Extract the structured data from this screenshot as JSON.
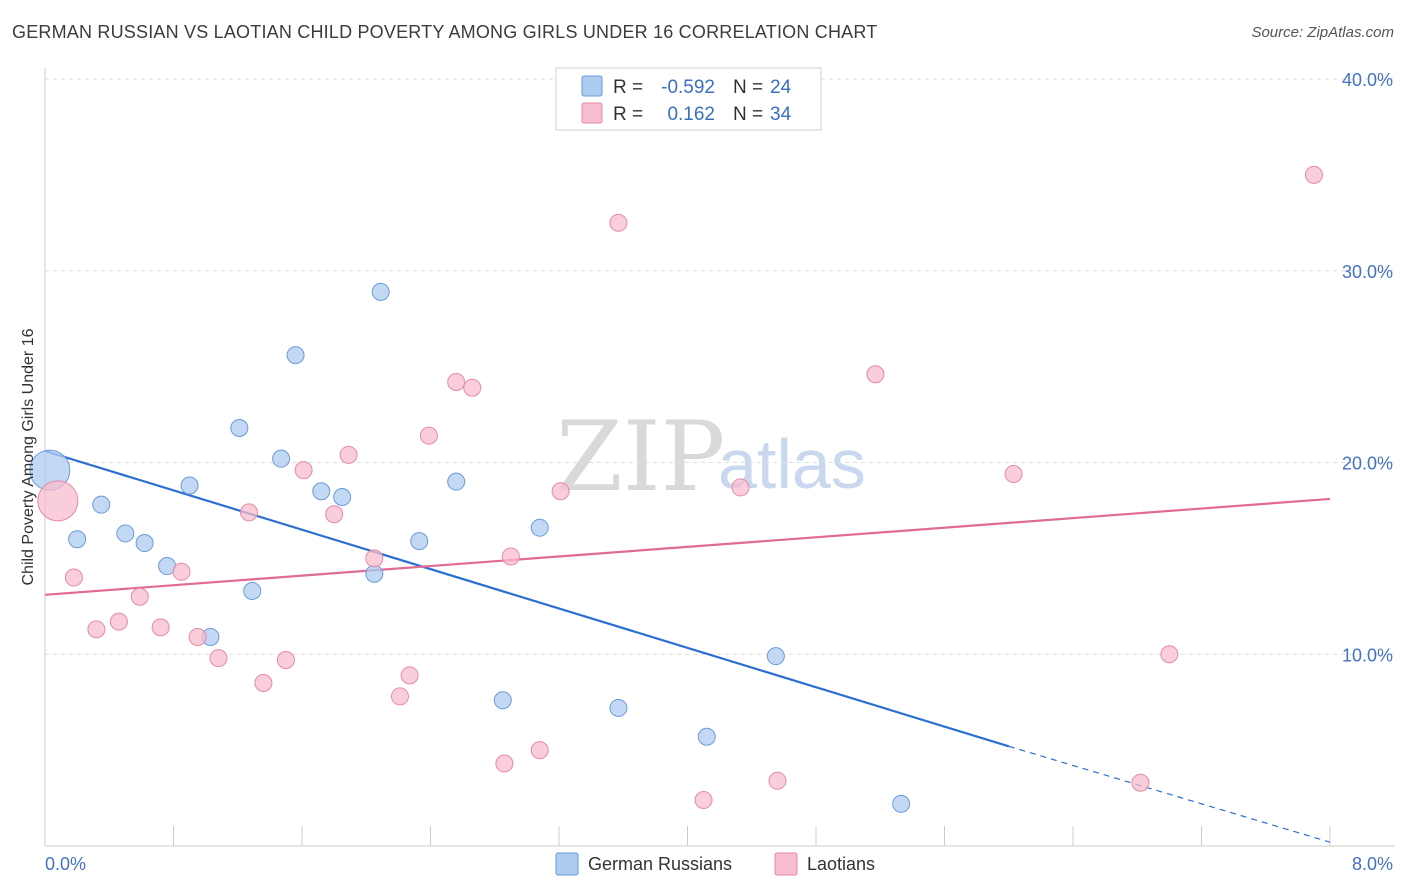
{
  "title": "GERMAN RUSSIAN VS LAOTIAN CHILD POVERTY AMONG GIRLS UNDER 16 CORRELATION CHART",
  "source": "Source: ZipAtlas.com",
  "watermark": {
    "zip": "ZIP",
    "atlas": "atlas"
  },
  "legend": {
    "rows": [
      {
        "r_label": "R =",
        "r_value": "-0.592",
        "n_label": "N =",
        "n_value": "24",
        "color": "#aecbf0"
      },
      {
        "r_label": "R =",
        "r_value": "0.162",
        "n_label": "N =",
        "n_value": "34",
        "color": "#f7bccd"
      }
    ]
  },
  "bottom_legend": [
    {
      "label": "German Russians",
      "color": "#aecbf0"
    },
    {
      "label": "Laotians",
      "color": "#f7bccd"
    }
  ],
  "chart_data": {
    "type": "scatter",
    "title": "GERMAN RUSSIAN VS LAOTIAN CHILD POVERTY AMONG GIRLS UNDER 16 CORRELATION CHART",
    "xlabel": "",
    "ylabel": "Child Poverty Among Girls Under 16",
    "xlim": [
      0,
      8
    ],
    "ylim": [
      0,
      40
    ],
    "x_tick_labels": [
      "0.0%",
      "8.0%"
    ],
    "y_ticks": [
      10,
      20,
      30,
      40
    ],
    "y_tick_labels": [
      "10.0%",
      "20.0%",
      "30.0%",
      "40.0%"
    ],
    "grid": true,
    "legend_position": "top-center",
    "series": [
      {
        "name": "German Russians",
        "color": "#aecbf0",
        "stroke": "#6b9bd8",
        "trend_color": "#2b6fd1",
        "trend": {
          "x0": 0,
          "y0": 20.6,
          "x1": 6.0,
          "y1": 5.2,
          "dash_to_x": 8.0,
          "dash_to_y": 0.2
        },
        "points": [
          {
            "x": 0.03,
            "y": 19.6,
            "size": "large"
          },
          {
            "x": 0.2,
            "y": 16.0
          },
          {
            "x": 0.35,
            "y": 17.8
          },
          {
            "x": 0.5,
            "y": 16.3
          },
          {
            "x": 0.62,
            "y": 15.8
          },
          {
            "x": 0.76,
            "y": 14.6
          },
          {
            "x": 0.9,
            "y": 18.8
          },
          {
            "x": 1.03,
            "y": 10.9
          },
          {
            "x": 1.21,
            "y": 21.8
          },
          {
            "x": 1.29,
            "y": 13.3
          },
          {
            "x": 1.47,
            "y": 20.2
          },
          {
            "x": 1.56,
            "y": 25.6
          },
          {
            "x": 1.72,
            "y": 18.5
          },
          {
            "x": 1.85,
            "y": 18.2
          },
          {
            "x": 2.05,
            "y": 14.2
          },
          {
            "x": 2.09,
            "y": 28.9
          },
          {
            "x": 2.33,
            "y": 15.9
          },
          {
            "x": 2.56,
            "y": 19.0
          },
          {
            "x": 2.85,
            "y": 7.6
          },
          {
            "x": 3.08,
            "y": 16.6
          },
          {
            "x": 3.57,
            "y": 7.2
          },
          {
            "x": 4.12,
            "y": 5.7
          },
          {
            "x": 4.55,
            "y": 9.9
          },
          {
            "x": 5.33,
            "y": 2.2
          }
        ]
      },
      {
        "name": "Laotians",
        "color": "#f7bccd",
        "stroke": "#e58aa8",
        "trend_color": "#e06c95",
        "trend": {
          "x0": 0,
          "y0": 13.1,
          "x1": 8.0,
          "y1": 18.1
        },
        "points": [
          {
            "x": 0.08,
            "y": 18.0,
            "size": "large"
          },
          {
            "x": 0.18,
            "y": 14.0
          },
          {
            "x": 0.32,
            "y": 11.3
          },
          {
            "x": 0.46,
            "y": 11.7
          },
          {
            "x": 0.59,
            "y": 13.0
          },
          {
            "x": 0.72,
            "y": 11.4
          },
          {
            "x": 0.85,
            "y": 14.3
          },
          {
            "x": 0.95,
            "y": 10.9
          },
          {
            "x": 1.08,
            "y": 9.8
          },
          {
            "x": 1.27,
            "y": 17.4
          },
          {
            "x": 1.36,
            "y": 8.5
          },
          {
            "x": 1.5,
            "y": 9.7
          },
          {
            "x": 1.61,
            "y": 19.6
          },
          {
            "x": 1.8,
            "y": 17.3
          },
          {
            "x": 1.89,
            "y": 20.4
          },
          {
            "x": 2.05,
            "y": 15.0
          },
          {
            "x": 2.21,
            "y": 7.8
          },
          {
            "x": 2.27,
            "y": 8.9
          },
          {
            "x": 2.39,
            "y": 21.4
          },
          {
            "x": 2.56,
            "y": 24.2
          },
          {
            "x": 2.66,
            "y": 23.9
          },
          {
            "x": 2.86,
            "y": 4.3
          },
          {
            "x": 2.9,
            "y": 15.1
          },
          {
            "x": 3.08,
            "y": 5.0
          },
          {
            "x": 3.21,
            "y": 18.5
          },
          {
            "x": 3.57,
            "y": 32.5
          },
          {
            "x": 4.1,
            "y": 2.4
          },
          {
            "x": 4.33,
            "y": 18.7
          },
          {
            "x": 4.56,
            "y": 3.4
          },
          {
            "x": 5.17,
            "y": 24.6
          },
          {
            "x": 6.03,
            "y": 19.4
          },
          {
            "x": 6.82,
            "y": 3.3
          },
          {
            "x": 7.0,
            "y": 10.0
          },
          {
            "x": 7.9,
            "y": 35.0
          }
        ]
      }
    ]
  }
}
